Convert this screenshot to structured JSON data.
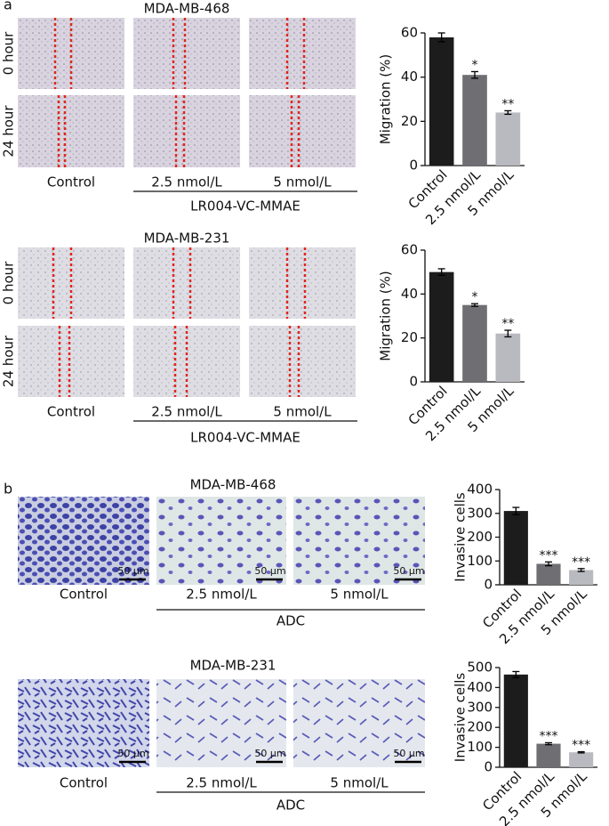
{
  "panels": [
    {
      "label": "a",
      "groups": [
        {
          "title": "MDA-MB-468",
          "rows": [
            "0 hour",
            "24 hour"
          ],
          "columns": [
            "Control",
            "2.5 nmol/L",
            "5 nmol/L"
          ],
          "treatment": "LR004-VC-MMAE"
        },
        {
          "title": "MDA-MB-231",
          "rows": [
            "0 hour",
            "24 hour"
          ],
          "columns": [
            "Control",
            "2.5 nmol/L",
            "5 nmol/L"
          ],
          "treatment": "LR004-VC-MMAE"
        }
      ]
    },
    {
      "label": "b",
      "groups": [
        {
          "title": "MDA-MB-468",
          "columns": [
            "Control",
            "2.5 nmol/L",
            "5 nmol/L"
          ],
          "scale_bars": [
            "50 μm",
            "50 μm",
            "50 μm"
          ],
          "treatment": "ADC"
        },
        {
          "title": "MDA-MB-231",
          "columns": [
            "Control",
            "2.5 nmol/L",
            "5 nmol/L"
          ],
          "scale_bars": [
            "50 μm",
            "50 μm",
            "50 μm"
          ],
          "treatment": "ADC"
        }
      ]
    }
  ],
  "chart_data": [
    {
      "type": "bar",
      "ylabel": "Migration (%)",
      "categories": [
        "Control",
        "2.5 nmol/L",
        "5 nmol/L"
      ],
      "values": [
        58,
        41,
        24
      ],
      "errors": [
        2,
        1.5,
        0.8
      ],
      "significance": [
        null,
        "*",
        "**"
      ],
      "colors": [
        "#1c1c1c",
        "#6e6e73",
        "#b9b9c0"
      ],
      "ylim": [
        0,
        60
      ],
      "yticks": [
        0,
        20,
        40,
        60
      ]
    },
    {
      "type": "bar",
      "ylabel": "Migration (%)",
      "categories": [
        "Control",
        "2.5 nmol/L",
        "5 nmol/L"
      ],
      "values": [
        50,
        35,
        22
      ],
      "errors": [
        1.5,
        0.6,
        1.5
      ],
      "significance": [
        null,
        "*",
        "**"
      ],
      "colors": [
        "#1c1c1c",
        "#6e6e73",
        "#b9b9c0"
      ],
      "ylim": [
        0,
        60
      ],
      "yticks": [
        0,
        20,
        40,
        60
      ]
    },
    {
      "type": "bar",
      "ylabel": "Invasive cells",
      "categories": [
        "Control",
        "2.5 nmol/L",
        "5 nmol/L"
      ],
      "values": [
        310,
        88,
        62
      ],
      "errors": [
        15,
        8,
        6
      ],
      "significance": [
        null,
        "***",
        "***"
      ],
      "colors": [
        "#1c1c1c",
        "#6e6e73",
        "#b9b9c0"
      ],
      "ylim": [
        0,
        400
      ],
      "yticks": [
        0,
        100,
        200,
        300,
        400
      ]
    },
    {
      "type": "bar",
      "ylabel": "Invasive cells",
      "categories": [
        "Control",
        "2.5 nmol/L",
        "5 nmol/L"
      ],
      "values": [
        465,
        118,
        75
      ],
      "errors": [
        15,
        5,
        3
      ],
      "significance": [
        null,
        "***",
        "***"
      ],
      "colors": [
        "#1c1c1c",
        "#6e6e73",
        "#b9b9c0"
      ],
      "ylim": [
        0,
        500
      ],
      "yticks": [
        0,
        100,
        200,
        300,
        400,
        500
      ]
    }
  ]
}
